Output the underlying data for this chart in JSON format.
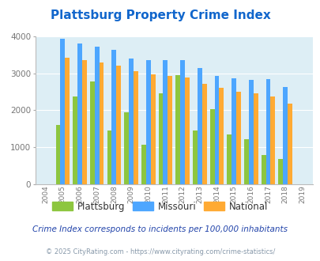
{
  "title": "Plattsburg Property Crime Index",
  "years": [
    2004,
    2005,
    2006,
    2007,
    2008,
    2009,
    2010,
    2011,
    2012,
    2013,
    2014,
    2015,
    2016,
    2017,
    2018,
    2019
  ],
  "plattsburg": [
    0,
    1600,
    2380,
    2775,
    1450,
    1950,
    1060,
    2460,
    2960,
    1450,
    2020,
    1350,
    1210,
    790,
    670,
    0
  ],
  "missouri": [
    0,
    3950,
    3820,
    3720,
    3640,
    3400,
    3370,
    3360,
    3350,
    3150,
    2930,
    2870,
    2820,
    2850,
    2640,
    0
  ],
  "national": [
    0,
    3430,
    3350,
    3290,
    3200,
    3060,
    2970,
    2930,
    2890,
    2720,
    2600,
    2510,
    2450,
    2380,
    2180,
    0
  ],
  "plattsburg_color": "#8dc63f",
  "missouri_color": "#4da6ff",
  "national_color": "#ffaa33",
  "bg_color": "#ffffff",
  "plot_bg_color": "#ddeef5",
  "title_color": "#1166cc",
  "ylim": [
    0,
    4000
  ],
  "yticks": [
    0,
    1000,
    2000,
    3000,
    4000
  ],
  "subtitle": "Crime Index corresponds to incidents per 100,000 inhabitants",
  "footer": "© 2025 CityRating.com - https://www.cityrating.com/crime-statistics/",
  "subtitle_color": "#2244aa",
  "footer_color": "#8899aa"
}
